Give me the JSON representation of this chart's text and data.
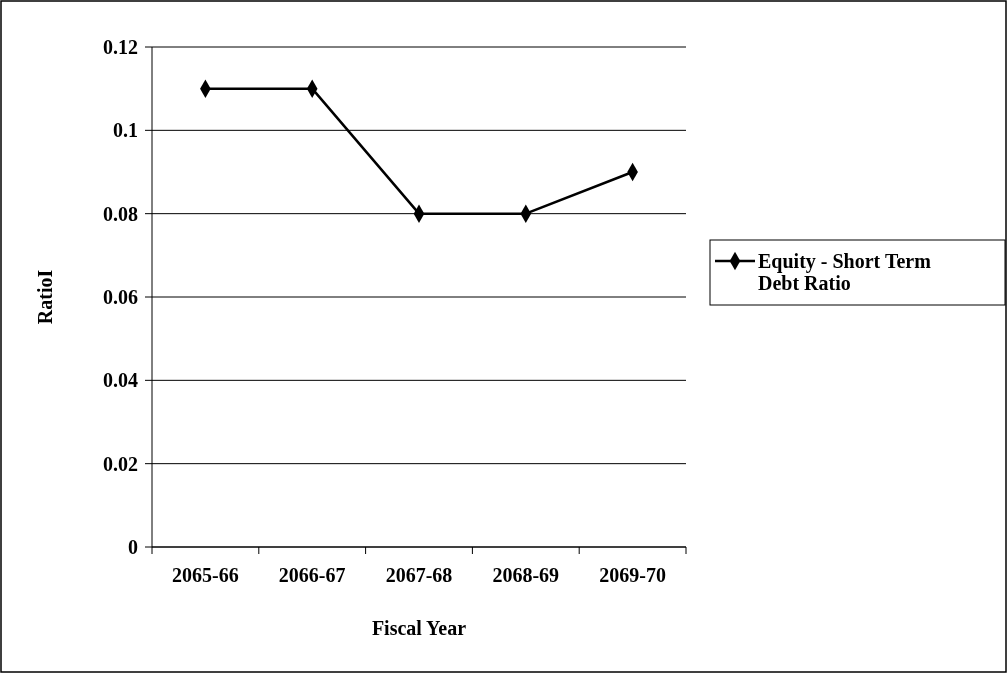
{
  "chart_data": {
    "type": "line",
    "xlabel": "Fiscal Year",
    "ylabel": "RatioI",
    "categories": [
      "2065-66",
      "2066-67",
      "2067-68",
      "2068-69",
      "2069-70"
    ],
    "series": [
      {
        "name": "Equity - Short Term Debt Ratio",
        "color": "#000000",
        "values": [
          0.11,
          0.11,
          0.08,
          0.08,
          0.09
        ]
      }
    ],
    "ylim": [
      0,
      0.12
    ],
    "yticks": [
      0,
      0.02,
      0.04,
      0.06,
      0.08,
      0.1,
      0.12
    ],
    "grid": "y",
    "legend": "right",
    "marker": "diamond",
    "line_style": "solid"
  }
}
